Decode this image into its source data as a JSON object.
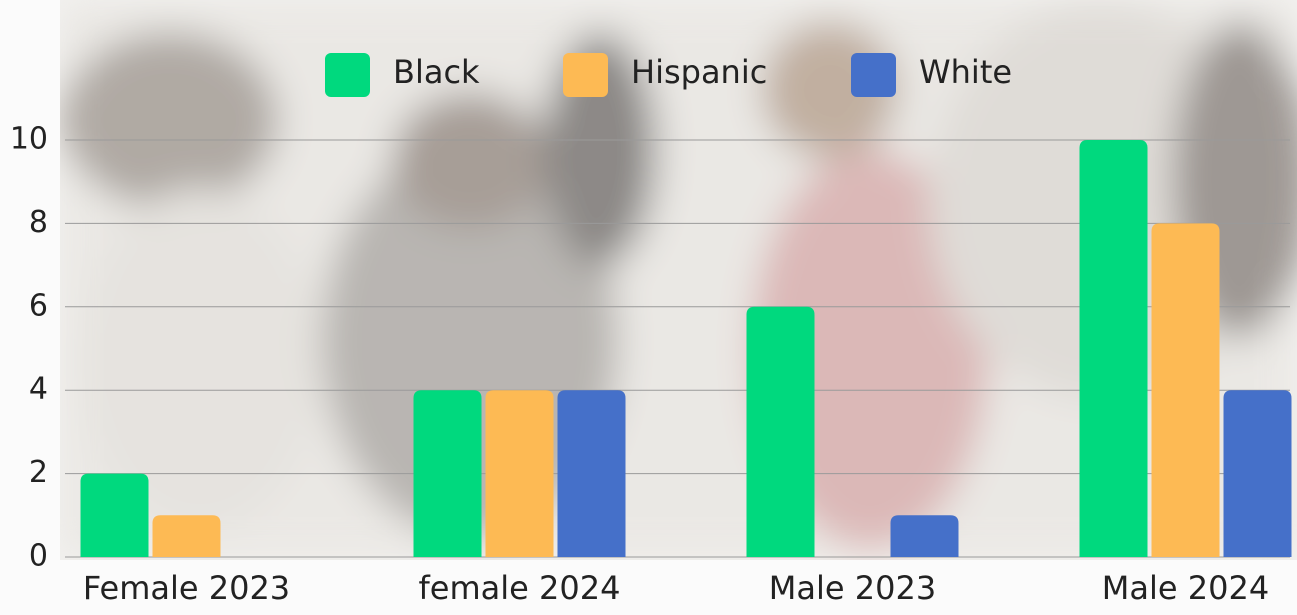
{
  "chart_data": {
    "type": "bar",
    "categories": [
      "Female 2023",
      "female 2024",
      "Male 2023",
      "Male 2024"
    ],
    "series": [
      {
        "name": "Black",
        "color": "#00d97e",
        "values": [
          2,
          4,
          6,
          10
        ]
      },
      {
        "name": "Hispanic",
        "color": "#fdba54",
        "values": [
          1,
          4,
          0,
          8
        ]
      },
      {
        "name": "White",
        "color": "#4570c9",
        "values": [
          0,
          4,
          1,
          4
        ]
      }
    ],
    "ylim": [
      0,
      10
    ],
    "yticks": [
      0,
      2,
      4,
      6,
      8,
      10
    ],
    "grid": true,
    "legend": "top"
  }
}
